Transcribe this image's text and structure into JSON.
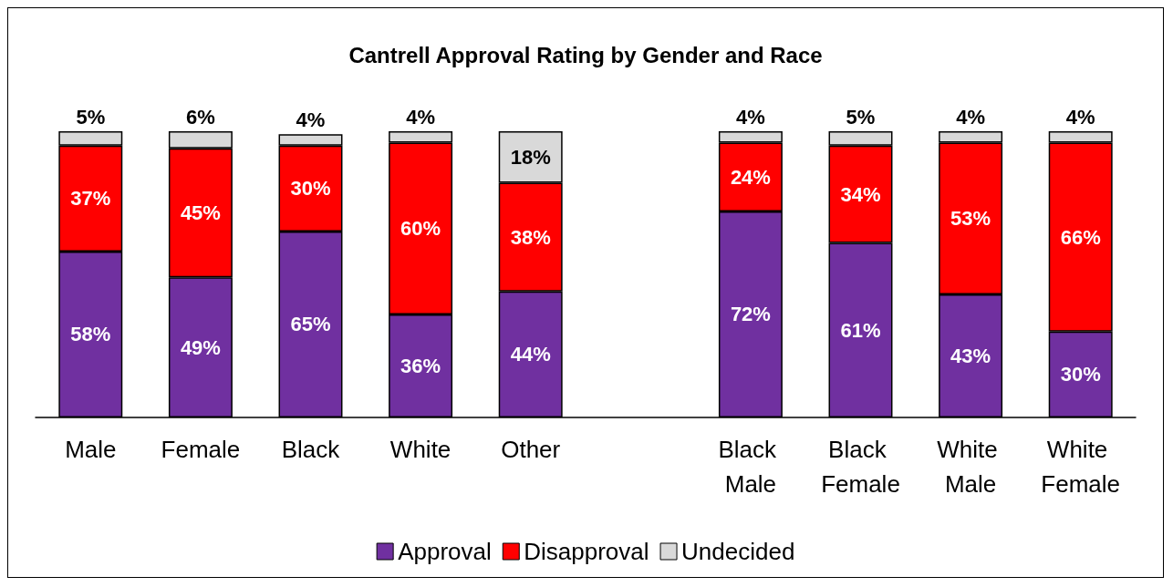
{
  "chart_data": {
    "type": "bar",
    "title": "Cantrell Approval Rating by Gender and Race",
    "stacked": true,
    "legend": "bottom",
    "categories": [
      "Male",
      "Female",
      "Black",
      "White",
      "Other",
      null,
      "Black Male",
      "Black Female",
      "White Male",
      "White Female"
    ],
    "series": [
      {
        "name": "Approval",
        "color": "#7030a0",
        "values": [
          58,
          49,
          65,
          36,
          44,
          null,
          72,
          61,
          43,
          30
        ],
        "value_labels": [
          "58%",
          "49%",
          "65%",
          "36%",
          "44%",
          null,
          "72%",
          "61%",
          "43%",
          "30%"
        ]
      },
      {
        "name": "Disapproval",
        "color": "#ff0000",
        "values": [
          37,
          45,
          30,
          60,
          38,
          null,
          24,
          34,
          53,
          66
        ],
        "value_labels": [
          "37%",
          "45%",
          "30%",
          "60%",
          "38%",
          null,
          "24%",
          "34%",
          "53%",
          "66%"
        ]
      },
      {
        "name": "Undecided",
        "color": "#d9d9d9",
        "values": [
          5,
          6,
          4,
          4,
          18,
          null,
          4,
          5,
          4,
          4
        ],
        "value_labels": [
          "5%",
          "6%",
          "4%",
          "4%",
          "18%",
          null,
          "4%",
          "5%",
          "4%",
          "4%"
        ]
      }
    ]
  }
}
